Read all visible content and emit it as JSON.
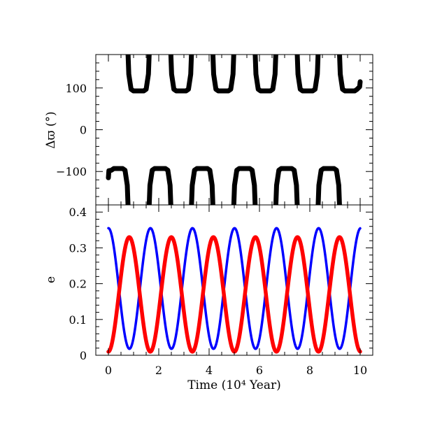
{
  "chart_data": [
    {
      "type": "scatter",
      "xlabel": "",
      "ylabel": "Δϖ (°)",
      "xlim": [
        -0.5,
        10.5
      ],
      "ylim": [
        -180,
        180
      ],
      "x_major_ticks": [
        0,
        2,
        4,
        6,
        8,
        10
      ],
      "y_major_ticks": [
        -100,
        0,
        100
      ],
      "y_tick_labels": [
        "−100",
        "0",
        "100"
      ],
      "series": [
        {
          "color": "#000000",
          "pattern": "alternating resonance lobes, wrapping at ±180",
          "segments": [
            {
              "branch": "negative",
              "x_start": 0.0,
              "x_end": 0.78,
              "y_plateau": -93
            },
            {
              "branch": "positive",
              "x_start": 0.78,
              "x_end": 1.62,
              "y_plateau": 93
            },
            {
              "branch": "negative",
              "x_start": 1.62,
              "x_end": 2.48,
              "y_plateau": -93
            },
            {
              "branch": "positive",
              "x_start": 2.48,
              "x_end": 3.3,
              "y_plateau": 93
            },
            {
              "branch": "negative",
              "x_start": 3.3,
              "x_end": 4.15,
              "y_plateau": -93
            },
            {
              "branch": "positive",
              "x_start": 4.15,
              "x_end": 4.98,
              "y_plateau": 93
            },
            {
              "branch": "negative",
              "x_start": 4.98,
              "x_end": 5.83,
              "y_plateau": -93
            },
            {
              "branch": "positive",
              "x_start": 5.83,
              "x_end": 6.65,
              "y_plateau": 93
            },
            {
              "branch": "negative",
              "x_start": 6.65,
              "x_end": 7.5,
              "y_plateau": -93
            },
            {
              "branch": "positive",
              "x_start": 7.5,
              "x_end": 8.33,
              "y_plateau": 93
            },
            {
              "branch": "negative",
              "x_start": 8.33,
              "x_end": 9.18,
              "y_plateau": -93
            },
            {
              "branch": "positive",
              "x_start": 9.18,
              "x_end": 10.0,
              "y_plateau": 93
            }
          ]
        }
      ]
    },
    {
      "type": "line",
      "xlabel": "Time (10⁴ Year)",
      "ylabel": "e",
      "xlim": [
        -0.5,
        10.5
      ],
      "ylim": [
        0,
        0.42
      ],
      "x_major_ticks": [
        0,
        2,
        4,
        6,
        8,
        10
      ],
      "x_tick_labels": [
        "0",
        "2",
        "4",
        "6",
        "8",
        "10"
      ],
      "y_major_ticks": [
        0,
        0.1,
        0.2,
        0.3,
        0.4
      ],
      "y_tick_labels": [
        "0",
        "0.1",
        "0.2",
        "0.3",
        "0.4"
      ],
      "series": [
        {
          "color": "#0000ff",
          "x_start": 0.0,
          "x_end": 10.0,
          "max": 0.355,
          "min": 0.018,
          "period": 1.67,
          "phase_of_first_max": 0.0
        },
        {
          "color": "#ff0000",
          "x_start": 0.0,
          "x_end": 10.0,
          "max": 0.33,
          "min": 0.01,
          "period": 1.67,
          "phase_of_first_max": 0.83
        }
      ]
    }
  ]
}
